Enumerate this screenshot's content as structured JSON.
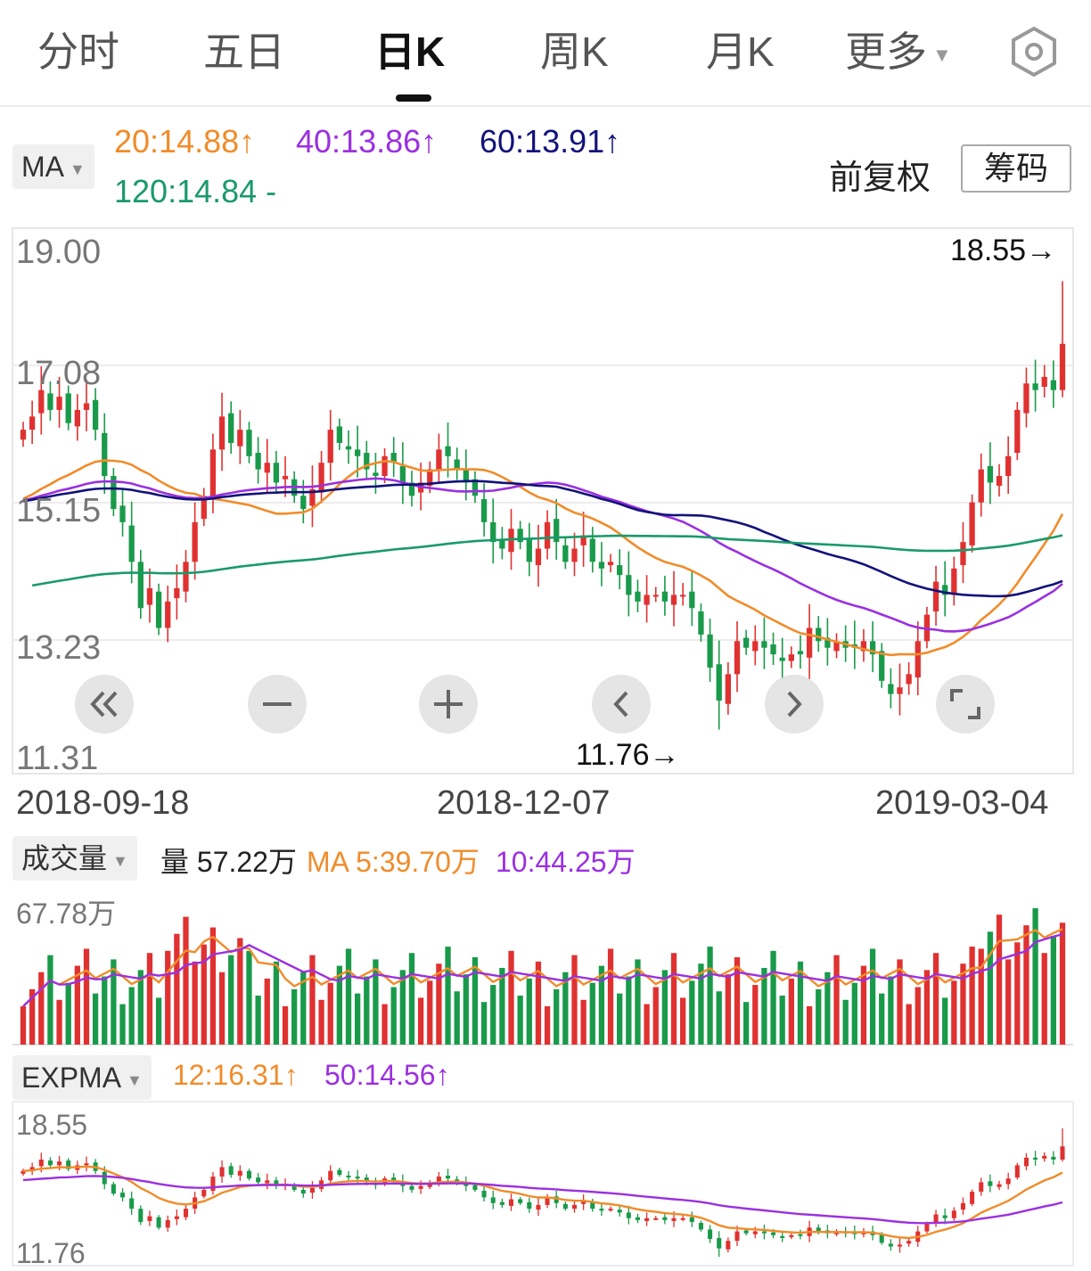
{
  "tabs": [
    {
      "label": "分时"
    },
    {
      "label": "五日"
    },
    {
      "label": "日K"
    },
    {
      "label": "周K"
    },
    {
      "label": "月K"
    },
    {
      "label": "更多"
    }
  ],
  "active_tab": "日K",
  "icons": {
    "settings": "hexagon-settings-icon",
    "dropdown": "caret-down-icon"
  },
  "ma_indicator": {
    "selector": "MA",
    "ma20": "20:14.88↑",
    "ma40": "40:13.86↑",
    "ma60": "60:13.91↑",
    "ma120": "120:14.84 -"
  },
  "buttons": {
    "fuquan": "前复权",
    "chouma": "筹码"
  },
  "colors": {
    "up": "#e03131",
    "down": "#199a4a",
    "ma20": "#f08c2a",
    "ma40": "#9b30e0",
    "ma60": "#12127a",
    "ma120": "#1a9a6a"
  },
  "price_axis": [
    "19.00",
    "17.08",
    "15.15",
    "13.23",
    "11.31"
  ],
  "dates": [
    "2018-09-18",
    "2018-12-07",
    "2019-03-04"
  ],
  "high_label": "18.55→",
  "low_label": "11.76→",
  "controls": [
    "zoom-fast-back",
    "zoom-out",
    "zoom-in",
    "pan-left",
    "pan-right",
    "fullscreen"
  ],
  "volume": {
    "selector": "成交量",
    "vol": "量 57.22万",
    "ma5": "MA 5:39.70万",
    "ma10": "10:44.25万",
    "axis_top": "67.78万"
  },
  "expma": {
    "selector": "EXPMA",
    "e12": "12:16.31↑",
    "e50": "50:14.56↑",
    "axis_top": "18.55",
    "axis_bottom": "11.76"
  },
  "chart_data": {
    "type": "candlestick",
    "x_start": "2018-09-18",
    "x_end": "2019-03-05",
    "ylim": [
      11.31,
      19.0
    ],
    "high": 18.55,
    "low": 11.76,
    "ma_last": {
      "MA20": 14.88,
      "MA40": 13.86,
      "MA60": 13.91,
      "MA120": 14.84
    },
    "volume_ylim_wan": [
      0,
      67.78
    ],
    "volume_last_wan": 57.22,
    "volume_ma_last_wan": {
      "MA5": 39.7,
      "MA10": 44.25
    },
    "expma_last": {
      "EXPMA12": 16.31,
      "EXPMA50": 14.56
    },
    "price_series": [
      16.3,
      16.5,
      16.9,
      16.6,
      16.8,
      16.4,
      16.6,
      16.7,
      16.3,
      15.6,
      15.1,
      14.9,
      14.3,
      13.6,
      13.9,
      13.3,
      13.7,
      13.9,
      14.3,
      14.9,
      15.3,
      16.0,
      16.5,
      16.1,
      16.3,
      15.9,
      15.7,
      15.8,
      15.5,
      15.6,
      15.3,
      15.1,
      15.4,
      15.8,
      16.3,
      16.1,
      16.0,
      15.9,
      15.7,
      15.6,
      15.9,
      15.8,
      15.5,
      15.3,
      15.5,
      15.7,
      16.0,
      15.9,
      15.7,
      15.5,
      15.3,
      14.9,
      14.6,
      14.5,
      14.8,
      14.6,
      14.3,
      14.5,
      14.9,
      14.6,
      14.3,
      14.5,
      14.7,
      14.3,
      14.2,
      14.3,
      14.1,
      13.8,
      13.7,
      13.8,
      13.8,
      13.7,
      13.8,
      13.8,
      13.6,
      13.2,
      12.7,
      12.2,
      12.6,
      13.1,
      13.0,
      13.1,
      13.0,
      12.9,
      12.8,
      12.9,
      12.9,
      13.3,
      13.1,
      13.0,
      13.1,
      13.0,
      13.0,
      13.1,
      12.9,
      12.5,
      12.3,
      12.4,
      12.6,
      13.1,
      13.5,
      14.0,
      13.8,
      14.2,
      14.6,
      15.2,
      15.7,
      15.5,
      15.6,
      15.9,
      16.6,
      17.0,
      16.9,
      17.1,
      16.9,
      17.6
    ]
  }
}
